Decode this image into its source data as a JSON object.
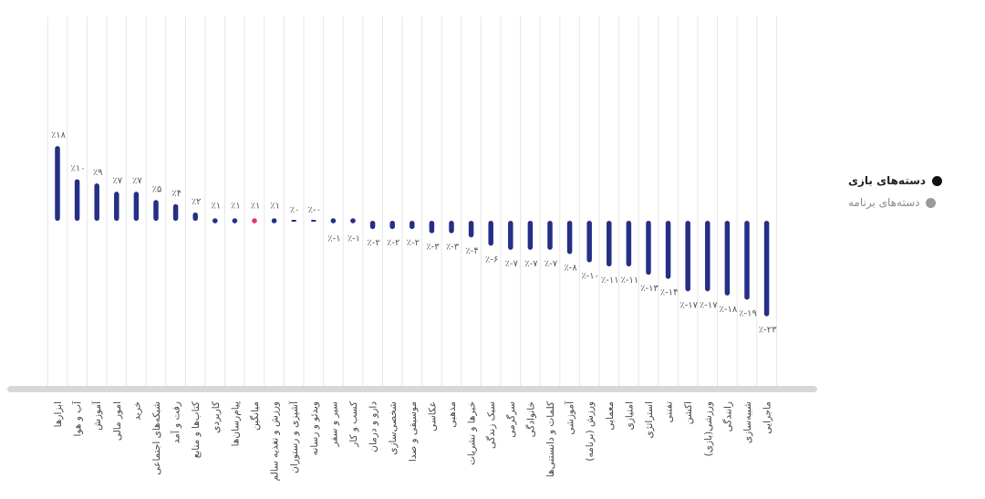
{
  "chart_data": {
    "type": "bar",
    "title": "",
    "xlabel": "",
    "ylabel": "",
    "ylim": [
      -23,
      18
    ],
    "grid": "vertical",
    "legend_position": "right",
    "categories": [
      "ابزارها",
      "آب و هوا",
      "آموزش",
      "امور مالی",
      "خرید",
      "شبکه‌های اجتماعی",
      "رفت و آمد",
      "کتاب‌ها و منابع",
      "کاربردی",
      "پیام‌رسان‌ها",
      "میانگین",
      "ورزش و تغذیه سالم",
      "آشپزی و رستوران",
      "ویدئو و رسانه",
      "سیر و سفر",
      "کسب و کار",
      "دارو و درمان",
      "شخصی‌سازی",
      "موسیقی و صدا",
      "عکاسی",
      "مذهبی",
      "خبرها و نشریات",
      "سبک زندگی",
      "سرگرمی",
      "خانوادگی",
      "کلمات و دانستنی‌ها",
      "آموزشی",
      "ورزش (برنامه)",
      "معمایی",
      "امتیازی",
      "استراتژی",
      "تفننی",
      "اکشن",
      "ورزشی(بازی)",
      "رانندگی",
      "شبیه‌سازی",
      "ماجرایی"
    ],
    "values": [
      18,
      10,
      9,
      7,
      7,
      5,
      4,
      2,
      1,
      1,
      1,
      1,
      0,
      0,
      -1,
      -1,
      -2,
      -2,
      -2,
      -3,
      -3,
      -4,
      -6,
      -7,
      -7,
      -7,
      -8,
      -10,
      -11,
      -11,
      -13,
      -14,
      -17,
      -17,
      -18,
      -19,
      -23
    ],
    "value_labels": [
      "٪۱۸",
      "٪۱۰",
      "٪۹",
      "٪۷",
      "٪۷",
      "٪۵",
      "٪۴",
      "٪۲",
      "٪۱",
      "٪۱",
      "٪۱",
      "٪۱",
      "٪۰",
      "٪-۰",
      "٪-۱",
      "٪-۱",
      "٪-۲",
      "٪-۲",
      "٪-۲",
      "٪-۳",
      "٪-۳",
      "٪-۴",
      "٪-۶",
      "٪-۷",
      "٪-۷",
      "٪-۷",
      "٪-۸",
      "٪-۱۰",
      "٪-۱۱",
      "٪-۱۱",
      "٪-۱۳",
      "٪-۱۴",
      "٪-۱۷",
      "٪-۱۷",
      "٪-۱۸",
      "٪-۱۹",
      "٪-۲۳"
    ],
    "highlight_index": 10,
    "colors": {
      "bar": "#252f86",
      "highlight": "#e8336b",
      "grid": "#e6e6e6",
      "baseline": "#d7d7d7",
      "label": "#555555"
    },
    "series": [
      {
        "name": "دسته‌های بازی",
        "color": "#111111",
        "active": true
      },
      {
        "name": "دسته‌های برنامه",
        "color": "#9a9a9a",
        "active": false
      }
    ]
  }
}
